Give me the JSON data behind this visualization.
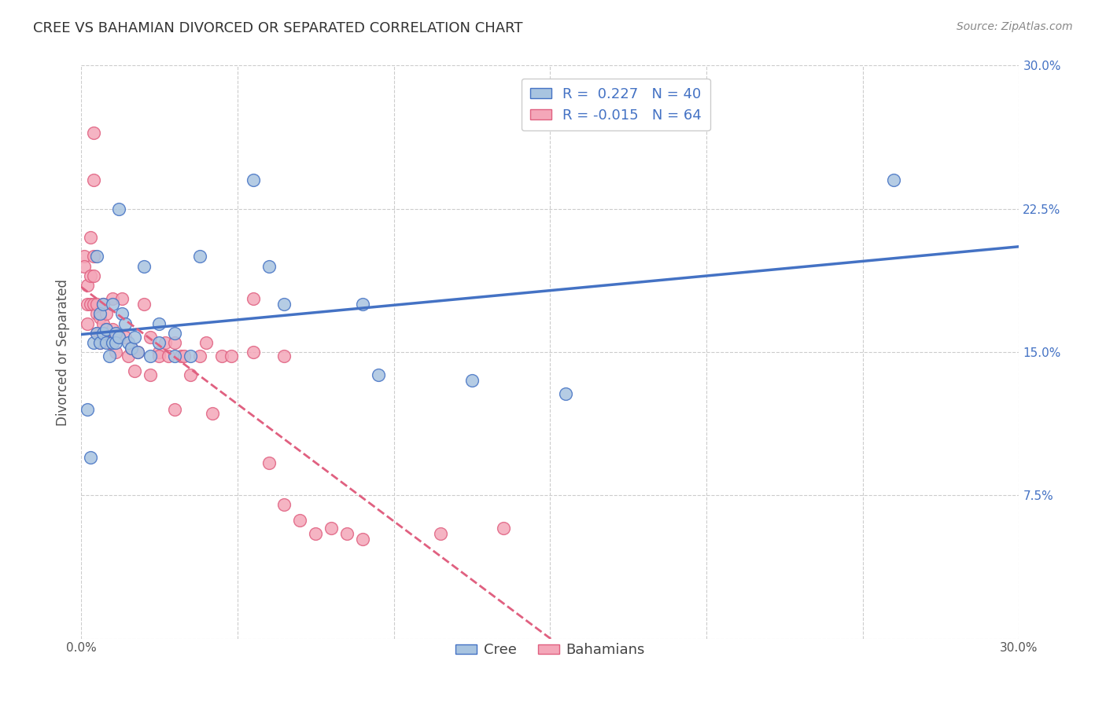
{
  "title": "CREE VS BAHAMIAN DIVORCED OR SEPARATED CORRELATION CHART",
  "source": "Source: ZipAtlas.com",
  "ylabel": "Divorced or Separated",
  "xlim": [
    0.0,
    0.3
  ],
  "ylim": [
    0.0,
    0.3
  ],
  "xticks": [
    0.0,
    0.05,
    0.1,
    0.15,
    0.2,
    0.25,
    0.3
  ],
  "yticks": [
    0.0,
    0.075,
    0.15,
    0.225,
    0.3
  ],
  "xtick_labels": [
    "0.0%",
    "",
    "",
    "",
    "",
    "",
    "30.0%"
  ],
  "ytick_labels": [
    "",
    "7.5%",
    "15.0%",
    "22.5%",
    "30.0%"
  ],
  "legend_bottom": [
    "Cree",
    "Bahamians"
  ],
  "cree_R": 0.227,
  "cree_N": 40,
  "bah_R": -0.015,
  "bah_N": 64,
  "cree_color": "#a8c4e0",
  "bah_color": "#f4a7b9",
  "cree_line_color": "#4472c4",
  "bah_line_color": "#e06080",
  "background_color": "#ffffff",
  "grid_color": "#cccccc",
  "cree_scatter": [
    [
      0.002,
      0.12
    ],
    [
      0.003,
      0.095
    ],
    [
      0.004,
      0.155
    ],
    [
      0.005,
      0.16
    ],
    [
      0.005,
      0.2
    ],
    [
      0.006,
      0.17
    ],
    [
      0.006,
      0.155
    ],
    [
      0.007,
      0.16
    ],
    [
      0.007,
      0.175
    ],
    [
      0.008,
      0.162
    ],
    [
      0.008,
      0.155
    ],
    [
      0.009,
      0.148
    ],
    [
      0.01,
      0.175
    ],
    [
      0.01,
      0.155
    ],
    [
      0.011,
      0.16
    ],
    [
      0.011,
      0.155
    ],
    [
      0.012,
      0.158
    ],
    [
      0.012,
      0.225
    ],
    [
      0.013,
      0.17
    ],
    [
      0.014,
      0.165
    ],
    [
      0.015,
      0.155
    ],
    [
      0.016,
      0.152
    ],
    [
      0.017,
      0.158
    ],
    [
      0.018,
      0.15
    ],
    [
      0.02,
      0.195
    ],
    [
      0.022,
      0.148
    ],
    [
      0.025,
      0.155
    ],
    [
      0.025,
      0.165
    ],
    [
      0.03,
      0.148
    ],
    [
      0.03,
      0.16
    ],
    [
      0.035,
      0.148
    ],
    [
      0.038,
      0.2
    ],
    [
      0.055,
      0.24
    ],
    [
      0.06,
      0.195
    ],
    [
      0.065,
      0.175
    ],
    [
      0.09,
      0.175
    ],
    [
      0.095,
      0.138
    ],
    [
      0.125,
      0.135
    ],
    [
      0.155,
      0.128
    ],
    [
      0.26,
      0.24
    ]
  ],
  "bah_scatter": [
    [
      0.001,
      0.2
    ],
    [
      0.001,
      0.195
    ],
    [
      0.002,
      0.185
    ],
    [
      0.002,
      0.175
    ],
    [
      0.002,
      0.165
    ],
    [
      0.003,
      0.21
    ],
    [
      0.003,
      0.19
    ],
    [
      0.003,
      0.175
    ],
    [
      0.004,
      0.265
    ],
    [
      0.004,
      0.24
    ],
    [
      0.004,
      0.2
    ],
    [
      0.004,
      0.19
    ],
    [
      0.004,
      0.175
    ],
    [
      0.005,
      0.17
    ],
    [
      0.005,
      0.16
    ],
    [
      0.005,
      0.175
    ],
    [
      0.006,
      0.168
    ],
    [
      0.006,
      0.16
    ],
    [
      0.006,
      0.155
    ],
    [
      0.007,
      0.175
    ],
    [
      0.007,
      0.165
    ],
    [
      0.007,
      0.158
    ],
    [
      0.008,
      0.17
    ],
    [
      0.008,
      0.162
    ],
    [
      0.009,
      0.155
    ],
    [
      0.01,
      0.178
    ],
    [
      0.01,
      0.162
    ],
    [
      0.011,
      0.15
    ],
    [
      0.012,
      0.158
    ],
    [
      0.013,
      0.178
    ],
    [
      0.014,
      0.158
    ],
    [
      0.015,
      0.148
    ],
    [
      0.016,
      0.152
    ],
    [
      0.017,
      0.14
    ],
    [
      0.018,
      0.15
    ],
    [
      0.02,
      0.175
    ],
    [
      0.022,
      0.138
    ],
    [
      0.022,
      0.158
    ],
    [
      0.025,
      0.15
    ],
    [
      0.025,
      0.148
    ],
    [
      0.027,
      0.155
    ],
    [
      0.028,
      0.148
    ],
    [
      0.03,
      0.12
    ],
    [
      0.03,
      0.155
    ],
    [
      0.032,
      0.148
    ],
    [
      0.033,
      0.148
    ],
    [
      0.035,
      0.138
    ],
    [
      0.038,
      0.148
    ],
    [
      0.04,
      0.155
    ],
    [
      0.042,
      0.118
    ],
    [
      0.045,
      0.148
    ],
    [
      0.048,
      0.148
    ],
    [
      0.055,
      0.178
    ],
    [
      0.055,
      0.15
    ],
    [
      0.06,
      0.092
    ],
    [
      0.065,
      0.07
    ],
    [
      0.065,
      0.148
    ],
    [
      0.07,
      0.062
    ],
    [
      0.075,
      0.055
    ],
    [
      0.08,
      0.058
    ],
    [
      0.085,
      0.055
    ],
    [
      0.09,
      0.052
    ],
    [
      0.115,
      0.055
    ],
    [
      0.135,
      0.058
    ]
  ]
}
